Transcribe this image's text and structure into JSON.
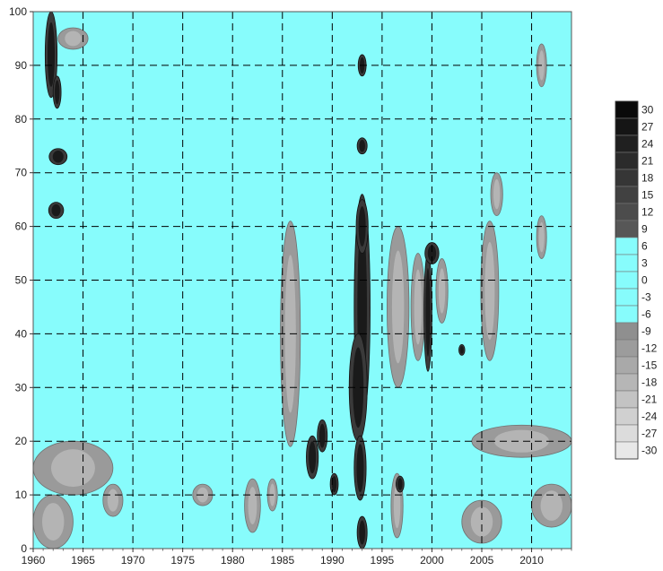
{
  "chart_data": {
    "type": "heatmap",
    "title": "",
    "xlabel": "",
    "ylabel": "",
    "xlim": [
      1960,
      2014
    ],
    "ylim": [
      0,
      100
    ],
    "x_ticks": [
      1960,
      1965,
      1970,
      1975,
      1980,
      1985,
      1990,
      1995,
      2000,
      2005,
      2010
    ],
    "y_ticks": [
      0,
      10,
      20,
      30,
      40,
      50,
      60,
      70,
      80,
      90,
      100
    ],
    "grid": "dashed",
    "legend_position": "right",
    "background_color": "#87fcfc",
    "levels": [
      {
        "label": "30",
        "color": "#0a0a0a"
      },
      {
        "label": "27",
        "color": "#151515"
      },
      {
        "label": "24",
        "color": "#202020"
      },
      {
        "label": "21",
        "color": "#2b2b2b"
      },
      {
        "label": "18",
        "color": "#363636"
      },
      {
        "label": "15",
        "color": "#414141"
      },
      {
        "label": "12",
        "color": "#4c4c4c"
      },
      {
        "label": "9",
        "color": "#575757"
      },
      {
        "label": "6",
        "color": "#87fcfc"
      },
      {
        "label": "3",
        "color": "#87fcfc"
      },
      {
        "label": "0",
        "color": "#87fcfc"
      },
      {
        "label": "-3",
        "color": "#87fcfc"
      },
      {
        "label": "-6",
        "color": "#87fcfc"
      },
      {
        "label": "-9",
        "color": "#8f8f8f"
      },
      {
        "label": "-12",
        "color": "#9c9c9c"
      },
      {
        "label": "-15",
        "color": "#a9a9a9"
      },
      {
        "label": "-18",
        "color": "#b6b6b6"
      },
      {
        "label": "-21",
        "color": "#c3c3c3"
      },
      {
        "label": "-24",
        "color": "#d0d0d0"
      },
      {
        "label": "-27",
        "color": "#dcdcdc"
      },
      {
        "label": "-30",
        "color": "#e8e8e8"
      }
    ],
    "dark_features": [
      {
        "x": 1993.0,
        "y": 45,
        "w": 1.6,
        "h": 42,
        "tone": "black"
      },
      {
        "x": 1992.6,
        "y": 30,
        "w": 1.8,
        "h": 20,
        "tone": "black"
      },
      {
        "x": 1992.8,
        "y": 15,
        "w": 1.2,
        "h": 12,
        "tone": "black"
      },
      {
        "x": 1993.0,
        "y": 75,
        "w": 1.0,
        "h": 3,
        "tone": "black"
      },
      {
        "x": 1993.0,
        "y": 3,
        "w": 1.0,
        "h": 6,
        "tone": "black"
      },
      {
        "x": 1993.0,
        "y": 90,
        "w": 0.8,
        "h": 4,
        "tone": "black"
      },
      {
        "x": 1988.0,
        "y": 17,
        "w": 1.2,
        "h": 8,
        "tone": "black"
      },
      {
        "x": 1989.0,
        "y": 21,
        "w": 1.0,
        "h": 6,
        "tone": "black"
      },
      {
        "x": 1990.2,
        "y": 12,
        "w": 0.8,
        "h": 4,
        "tone": "black"
      },
      {
        "x": 1961.8,
        "y": 92,
        "w": 1.2,
        "h": 16,
        "tone": "black"
      },
      {
        "x": 1962.4,
        "y": 85,
        "w": 0.8,
        "h": 6,
        "tone": "black"
      },
      {
        "x": 1999.6,
        "y": 44,
        "w": 0.8,
        "h": 22,
        "tone": "black"
      },
      {
        "x": 2000.0,
        "y": 55,
        "w": 1.4,
        "h": 4,
        "tone": "black"
      },
      {
        "x": 1962.5,
        "y": 73,
        "w": 1.8,
        "h": 3,
        "tone": "black"
      },
      {
        "x": 1962.3,
        "y": 63,
        "w": 1.5,
        "h": 3,
        "tone": "black"
      },
      {
        "x": 1993.0,
        "y": 60,
        "w": 1.2,
        "h": 10,
        "tone": "black"
      },
      {
        "x": 2003.0,
        "y": 37,
        "w": 0.6,
        "h": 2,
        "tone": "black"
      },
      {
        "x": 1996.8,
        "y": 12,
        "w": 0.8,
        "h": 3,
        "tone": "black"
      }
    ],
    "gray_features": [
      {
        "x": 1985.8,
        "y": 40,
        "w": 2.0,
        "h": 42,
        "tone": "gray"
      },
      {
        "x": 1996.6,
        "y": 45,
        "w": 2.2,
        "h": 30,
        "tone": "gray"
      },
      {
        "x": 1998.6,
        "y": 45,
        "w": 1.4,
        "h": 20,
        "tone": "gray"
      },
      {
        "x": 2005.8,
        "y": 48,
        "w": 1.8,
        "h": 26,
        "tone": "gray"
      },
      {
        "x": 2006.5,
        "y": 66,
        "w": 1.2,
        "h": 8,
        "tone": "gray"
      },
      {
        "x": 2001.0,
        "y": 48,
        "w": 1.2,
        "h": 12,
        "tone": "gray"
      },
      {
        "x": 2011.0,
        "y": 58,
        "w": 1.0,
        "h": 8,
        "tone": "gray"
      },
      {
        "x": 1964.0,
        "y": 15,
        "w": 8.0,
        "h": 10,
        "tone": "gray"
      },
      {
        "x": 1962.0,
        "y": 5,
        "w": 4.0,
        "h": 10,
        "tone": "gray"
      },
      {
        "x": 2009.0,
        "y": 20,
        "w": 10.0,
        "h": 6,
        "tone": "gray"
      },
      {
        "x": 2012.0,
        "y": 8,
        "w": 4.0,
        "h": 8,
        "tone": "gray"
      },
      {
        "x": 2005.0,
        "y": 5,
        "w": 4.0,
        "h": 8,
        "tone": "gray"
      },
      {
        "x": 1982.0,
        "y": 8,
        "w": 1.6,
        "h": 10,
        "tone": "gray"
      },
      {
        "x": 1996.5,
        "y": 8,
        "w": 1.2,
        "h": 12,
        "tone": "gray"
      },
      {
        "x": 1984.0,
        "y": 10,
        "w": 1.0,
        "h": 6,
        "tone": "gray"
      },
      {
        "x": 1964.0,
        "y": 95,
        "w": 3.0,
        "h": 4,
        "tone": "gray"
      },
      {
        "x": 2011.0,
        "y": 90,
        "w": 1.0,
        "h": 8,
        "tone": "gray"
      },
      {
        "x": 1977.0,
        "y": 10,
        "w": 2.0,
        "h": 4,
        "tone": "gray"
      },
      {
        "x": 1968.0,
        "y": 9,
        "w": 2.0,
        "h": 6,
        "tone": "gray"
      }
    ]
  }
}
